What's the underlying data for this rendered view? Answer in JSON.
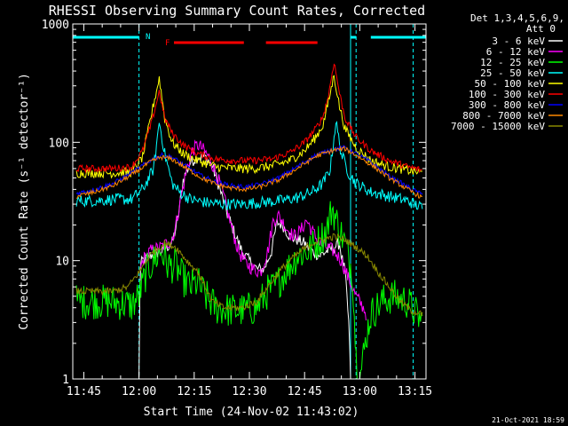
{
  "chart_data": {
    "type": "line",
    "title": "RHESSI Observing Summary Count Rates, Corrected",
    "xlabel": "Start Time (24-Nov-02 11:43:02)",
    "ylabel": "Corrected Count Rate (s⁻¹ detector⁻¹)",
    "y_scale": "log",
    "xlim_minutes": [
      -1.0,
      95.0
    ],
    "ylim": [
      1,
      1000
    ],
    "x_ticks": [
      {
        "t": 2,
        "label": "11:45"
      },
      {
        "t": 17,
        "label": "12:00"
      },
      {
        "t": 32,
        "label": "12:15"
      },
      {
        "t": 47,
        "label": "12:30"
      },
      {
        "t": 62,
        "label": "12:45"
      },
      {
        "t": 77,
        "label": "13:00"
      },
      {
        "t": 92,
        "label": "13:15"
      }
    ],
    "y_ticks": [
      {
        "v": 1,
        "label": "1"
      },
      {
        "v": 10,
        "label": "10"
      },
      {
        "v": 100,
        "label": "100"
      },
      {
        "v": 1000,
        "label": "1000"
      }
    ],
    "legend_header": [
      "Det 1,3,4,5,6,9,",
      "Att 0"
    ],
    "series": [
      {
        "name": "3 - 6 keV",
        "color": "#ffffff",
        "noise": 0.05,
        "points": [
          [
            17,
            1
          ],
          [
            17.3,
            9
          ],
          [
            18,
            10
          ],
          [
            20,
            11
          ],
          [
            23,
            12
          ],
          [
            26,
            14
          ],
          [
            27.5,
            22
          ],
          [
            29,
            48
          ],
          [
            31,
            68
          ],
          [
            33,
            75
          ],
          [
            35,
            75
          ],
          [
            37,
            62
          ],
          [
            39,
            40
          ],
          [
            41,
            25
          ],
          [
            43,
            17
          ],
          [
            45,
            12
          ],
          [
            47,
            10
          ],
          [
            49,
            8.5
          ],
          [
            51,
            8.5
          ],
          [
            53,
            12
          ],
          [
            54.5,
            21
          ],
          [
            56,
            20
          ],
          [
            58,
            16
          ],
          [
            60,
            15
          ],
          [
            62,
            14
          ],
          [
            64,
            12
          ],
          [
            66,
            11
          ],
          [
            68,
            12
          ],
          [
            70,
            13
          ],
          [
            71.5,
            14
          ],
          [
            72,
            11
          ],
          [
            73,
            8
          ],
          [
            74,
            3
          ],
          [
            74.5,
            1
          ]
        ]
      },
      {
        "name": "6 - 12 keV",
        "color": "#ff00ff",
        "noise": 0.06,
        "points": [
          [
            17.2,
            8
          ],
          [
            18,
            10
          ],
          [
            20,
            12
          ],
          [
            23,
            13
          ],
          [
            26,
            15
          ],
          [
            27,
            20
          ],
          [
            28.5,
            35
          ],
          [
            30,
            60
          ],
          [
            31.5,
            85
          ],
          [
            33,
            95
          ],
          [
            34,
            90
          ],
          [
            36,
            75
          ],
          [
            38,
            55
          ],
          [
            40,
            35
          ],
          [
            42,
            20
          ],
          [
            44,
            12
          ],
          [
            46,
            9.5
          ],
          [
            48,
            8.5
          ],
          [
            50,
            8
          ],
          [
            52,
            12
          ],
          [
            53.5,
            22
          ],
          [
            55,
            24
          ],
          [
            57,
            19
          ],
          [
            59,
            16
          ],
          [
            61,
            18
          ],
          [
            62.5,
            22
          ],
          [
            64,
            18
          ],
          [
            66,
            14
          ],
          [
            68,
            13
          ],
          [
            70,
            12
          ],
          [
            72,
            10
          ],
          [
            74,
            7
          ],
          [
            76,
            5
          ],
          [
            78,
            4
          ],
          [
            78.8,
            3.5
          ]
        ]
      },
      {
        "name": "12 - 25 keV",
        "color": "#00ff00",
        "noise": 0.15,
        "points": [
          [
            0,
            4.5
          ],
          [
            5,
            4.5
          ],
          [
            10,
            4.5
          ],
          [
            15,
            4.2
          ],
          [
            17,
            5
          ],
          [
            19,
            8
          ],
          [
            21,
            10
          ],
          [
            23,
            12
          ],
          [
            25,
            9
          ],
          [
            27,
            9
          ],
          [
            29,
            7
          ],
          [
            31,
            6
          ],
          [
            33,
            6.5
          ],
          [
            35,
            5
          ],
          [
            38,
            4
          ],
          [
            42,
            3.8
          ],
          [
            45,
            3.8
          ],
          [
            49,
            4
          ],
          [
            52,
            5.5
          ],
          [
            54,
            6
          ],
          [
            56,
            7.5
          ],
          [
            58,
            9
          ],
          [
            60,
            11
          ],
          [
            63,
            12
          ],
          [
            66,
            15
          ],
          [
            68,
            18
          ],
          [
            69.5,
            28
          ],
          [
            71,
            20
          ],
          [
            73,
            14
          ],
          [
            75,
            8
          ],
          [
            76,
            1.5
          ],
          [
            77,
            1
          ],
          [
            79,
            2.5
          ],
          [
            80,
            3.5
          ],
          [
            83,
            4.5
          ],
          [
            86,
            5
          ],
          [
            90,
            4.5
          ],
          [
            94,
            3
          ]
        ]
      },
      {
        "name": "25 - 50 keV",
        "color": "#00ffff",
        "noise": 0.05,
        "points": [
          [
            0,
            32
          ],
          [
            5,
            32
          ],
          [
            10,
            33
          ],
          [
            15,
            33
          ],
          [
            18,
            40
          ],
          [
            21,
            60
          ],
          [
            22.5,
            150
          ],
          [
            24,
            80
          ],
          [
            26,
            45
          ],
          [
            28,
            38
          ],
          [
            31,
            33
          ],
          [
            35,
            31
          ],
          [
            40,
            30
          ],
          [
            45,
            30
          ],
          [
            50,
            31
          ],
          [
            55,
            32
          ],
          [
            60,
            34
          ],
          [
            64,
            38
          ],
          [
            67,
            45
          ],
          [
            69,
            60
          ],
          [
            70.5,
            150
          ],
          [
            72,
            80
          ],
          [
            74,
            55
          ],
          [
            76,
            45
          ],
          [
            80,
            38
          ],
          [
            85,
            35
          ],
          [
            90,
            32
          ],
          [
            94,
            28
          ]
        ]
      },
      {
        "name": "50 - 100 keV",
        "color": "#ffff00",
        "noise": 0.04,
        "points": [
          [
            0,
            55
          ],
          [
            5,
            55
          ],
          [
            10,
            55
          ],
          [
            15,
            56
          ],
          [
            18,
            75
          ],
          [
            20.5,
            180
          ],
          [
            22.5,
            350
          ],
          [
            24,
            160
          ],
          [
            26,
            100
          ],
          [
            29,
            80
          ],
          [
            33,
            70
          ],
          [
            38,
            62
          ],
          [
            43,
            60
          ],
          [
            48,
            60
          ],
          [
            53,
            63
          ],
          [
            58,
            70
          ],
          [
            62,
            85
          ],
          [
            65,
            110
          ],
          [
            67,
            140
          ],
          [
            68.5,
            220
          ],
          [
            70,
            370
          ],
          [
            71.5,
            200
          ],
          [
            73,
            130
          ],
          [
            76,
            90
          ],
          [
            80,
            70
          ],
          [
            85,
            62
          ],
          [
            90,
            58
          ],
          [
            94,
            55
          ]
        ]
      },
      {
        "name": "100 - 300 keV",
        "color": "#ff0000",
        "noise": 0.03,
        "points": [
          [
            0,
            60
          ],
          [
            5,
            60
          ],
          [
            10,
            60
          ],
          [
            15,
            62
          ],
          [
            18,
            85
          ],
          [
            20.5,
            150
          ],
          [
            22.5,
            270
          ],
          [
            24,
            160
          ],
          [
            26,
            120
          ],
          [
            29,
            95
          ],
          [
            33,
            80
          ],
          [
            38,
            72
          ],
          [
            43,
            70
          ],
          [
            48,
            70
          ],
          [
            53,
            72
          ],
          [
            58,
            82
          ],
          [
            62,
            100
          ],
          [
            65,
            130
          ],
          [
            67,
            165
          ],
          [
            68.5,
            250
          ],
          [
            70,
            480
          ],
          [
            71.5,
            260
          ],
          [
            73,
            160
          ],
          [
            76,
            110
          ],
          [
            80,
            85
          ],
          [
            85,
            70
          ],
          [
            90,
            62
          ],
          [
            94,
            58
          ]
        ]
      },
      {
        "name": "300 - 800 keV",
        "color": "#0000ff",
        "noise": 0.02,
        "points": [
          [
            0,
            37
          ],
          [
            5,
            40
          ],
          [
            10,
            45
          ],
          [
            15,
            55
          ],
          [
            20,
            70
          ],
          [
            23,
            78
          ],
          [
            26,
            75
          ],
          [
            30,
            62
          ],
          [
            34,
            52
          ],
          [
            38,
            46
          ],
          [
            42,
            43
          ],
          [
            46,
            42
          ],
          [
            50,
            44
          ],
          [
            55,
            50
          ],
          [
            60,
            62
          ],
          [
            65,
            78
          ],
          [
            70,
            88
          ],
          [
            73,
            90
          ],
          [
            76,
            80
          ],
          [
            80,
            68
          ],
          [
            85,
            52
          ],
          [
            90,
            42
          ],
          [
            94,
            36
          ]
        ]
      },
      {
        "name": "800 - 7000 keV",
        "color": "#ff8800",
        "noise": 0.02,
        "points": [
          [
            0,
            35
          ],
          [
            5,
            38
          ],
          [
            10,
            43
          ],
          [
            15,
            53
          ],
          [
            20,
            68
          ],
          [
            23,
            75
          ],
          [
            26,
            72
          ],
          [
            30,
            60
          ],
          [
            34,
            50
          ],
          [
            38,
            44
          ],
          [
            42,
            41
          ],
          [
            46,
            40
          ],
          [
            50,
            42
          ],
          [
            55,
            48
          ],
          [
            60,
            60
          ],
          [
            65,
            76
          ],
          [
            70,
            86
          ],
          [
            73,
            88
          ],
          [
            76,
            78
          ],
          [
            80,
            65
          ],
          [
            85,
            50
          ],
          [
            90,
            40
          ],
          [
            94,
            34
          ]
        ]
      },
      {
        "name": "7000 - 15000 keV",
        "color": "#888800",
        "noise": 0.03,
        "points": [
          [
            0,
            5.5
          ],
          [
            5,
            5.5
          ],
          [
            10,
            5.5
          ],
          [
            14,
            6
          ],
          [
            17,
            8
          ],
          [
            19,
            10
          ],
          [
            21,
            12
          ],
          [
            24,
            14
          ],
          [
            27,
            13
          ],
          [
            30,
            10
          ],
          [
            33,
            8
          ],
          [
            35,
            6
          ],
          [
            37,
            4.5
          ],
          [
            40,
            4
          ],
          [
            45,
            4
          ],
          [
            49,
            4.5
          ],
          [
            52,
            6
          ],
          [
            55,
            8
          ],
          [
            58,
            10
          ],
          [
            61,
            12
          ],
          [
            64,
            14
          ],
          [
            67,
            15
          ],
          [
            70,
            16
          ],
          [
            73,
            15
          ],
          [
            76,
            13
          ],
          [
            79,
            11
          ],
          [
            82,
            8
          ],
          [
            85,
            6
          ],
          [
            88,
            4.5
          ],
          [
            91,
            3.8
          ],
          [
            94,
            3.5
          ]
        ]
      }
    ],
    "annotations": [
      {
        "text": "N",
        "color": "#00ffff",
        "t": 19.5,
        "flag": "night"
      },
      {
        "text": "F",
        "color": "#ff0000",
        "t": 24.8,
        "flag": "flare"
      }
    ],
    "flag_bars": [
      {
        "name": "night",
        "color": "#00ffff",
        "segments": [
          [
            -1,
            17
          ],
          [
            74.5,
            76
          ],
          [
            80,
            95
          ]
        ]
      },
      {
        "name": "flare",
        "color": "#ff0000",
        "segments": [
          [
            26.5,
            45.5
          ],
          [
            51.5,
            65.5
          ]
        ]
      }
    ],
    "vertical_lines": [
      {
        "t": 17,
        "color": "#00ffff",
        "style": "dashed"
      },
      {
        "t": 74.5,
        "color": "#00ffff",
        "style": "solid"
      },
      {
        "t": 76,
        "color": "#00ffff",
        "style": "dashed"
      },
      {
        "t": 91.5,
        "color": "#00ffff",
        "style": "dashed"
      }
    ],
    "timestamp": "21-Oct-2021 18:59"
  }
}
